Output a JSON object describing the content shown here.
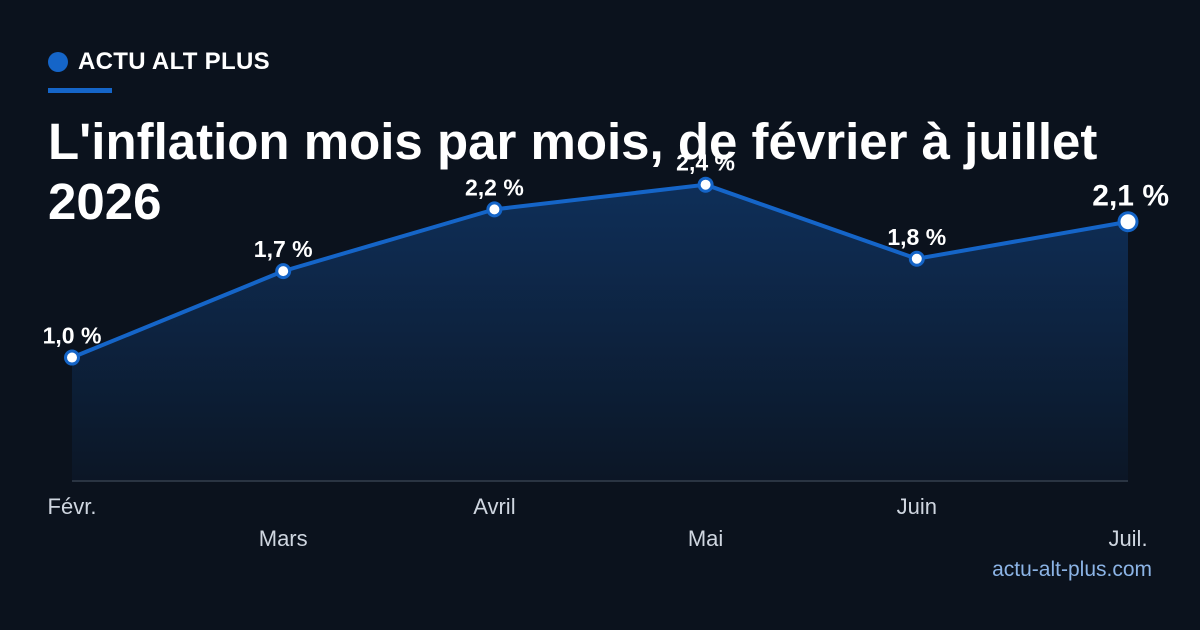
{
  "brand": {
    "name": "ACTU ALT PLUS",
    "accent_color": "#1565c8"
  },
  "title": "L'inflation mois par mois, de février à juillet 2026",
  "source": "actu-alt-plus.com",
  "chart_data": {
    "type": "area",
    "title": "L'inflation mois par mois, de février à juillet 2026",
    "categories": [
      "Févr.",
      "Mars",
      "Avril",
      "Mai",
      "Juin",
      "Juil."
    ],
    "values": [
      1.0,
      1.7,
      2.2,
      2.4,
      1.8,
      2.1
    ],
    "data_labels": [
      "1,0 %",
      "1,7 %",
      "2,2 %",
      "2,4 %",
      "1,8 %",
      "2,1 %"
    ],
    "xlabel": "",
    "ylabel": "",
    "ylim": [
      0,
      2.6
    ],
    "grid": false,
    "legend": "none",
    "line_color": "#1565c8",
    "background_color": "#0b121d"
  }
}
